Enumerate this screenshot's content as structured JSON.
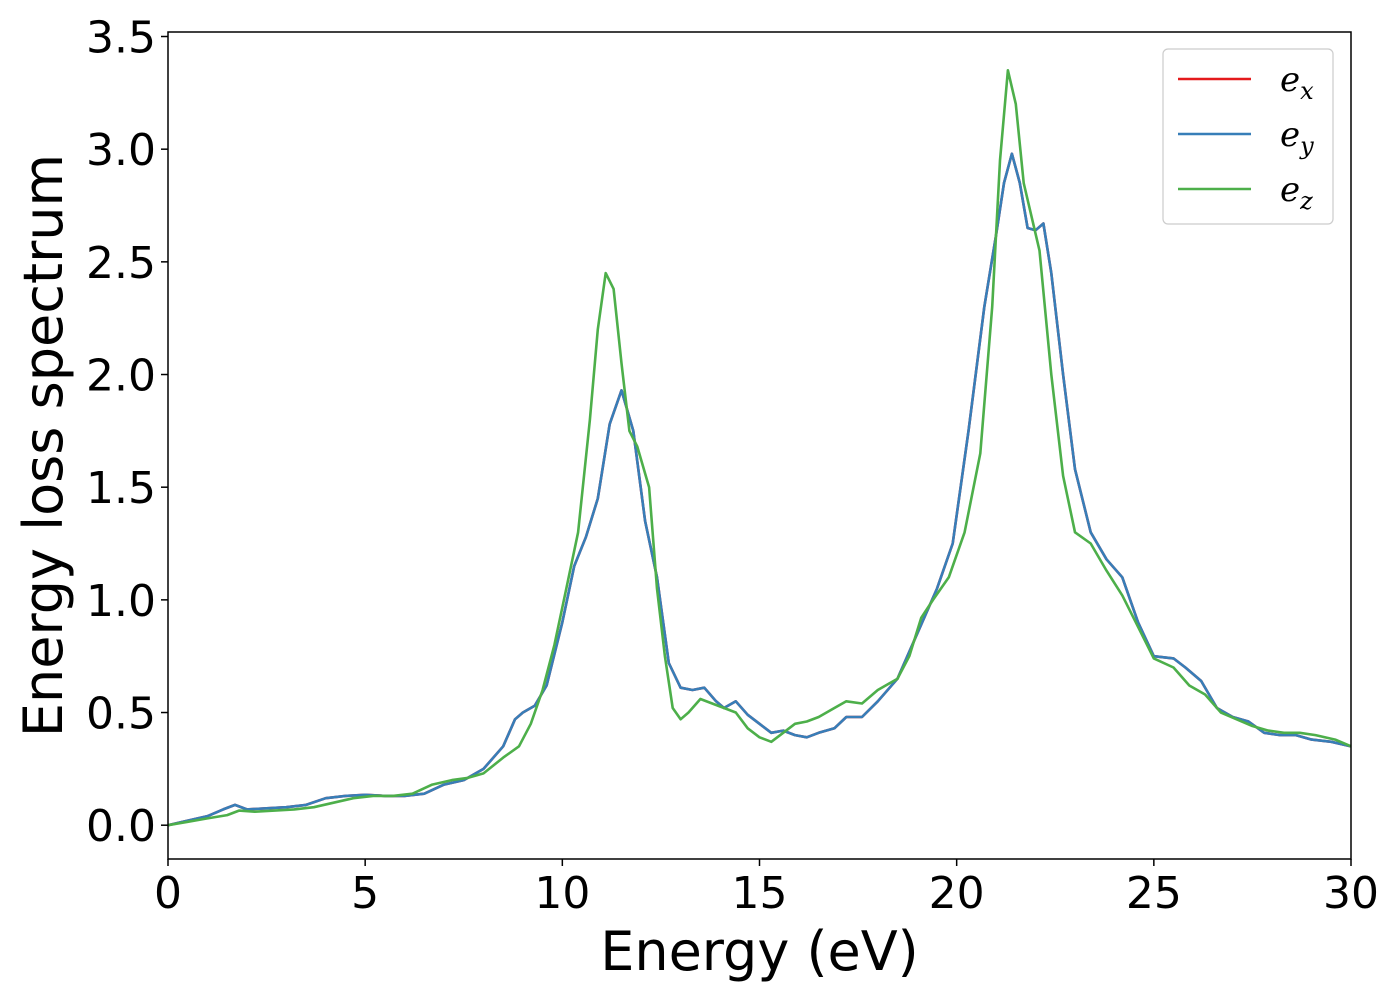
{
  "chart_data": {
    "type": "line",
    "title": "",
    "xlabel": "Energy (eV)",
    "ylabel": "Energy loss spectrum",
    "xlim": [
      0,
      30
    ],
    "ylim": [
      -0.15,
      3.52
    ],
    "xticks": [
      0,
      5,
      10,
      15,
      20,
      25,
      30
    ],
    "xtick_labels": [
      "0",
      "5",
      "10",
      "15",
      "20",
      "25",
      "30"
    ],
    "yticks": [
      0.0,
      0.5,
      1.0,
      1.5,
      2.0,
      2.5,
      3.0,
      3.5
    ],
    "ytick_labels": [
      "0.0",
      "0.5",
      "1.0",
      "1.5",
      "2.0",
      "2.5",
      "3.0",
      "3.5"
    ],
    "grid": false,
    "legend": {
      "position": "top-right",
      "entries": [
        {
          "base": "e",
          "sub": "x",
          "color": "#e41a1c"
        },
        {
          "base": "e",
          "sub": "y",
          "color": "#377eb8"
        },
        {
          "base": "e",
          "sub": "z",
          "color": "#4daf4a"
        }
      ]
    },
    "series": [
      {
        "name": "ex",
        "color": "#e41a1c",
        "points": [
          [
            0,
            0
          ],
          [
            0.5,
            0.02
          ],
          [
            1,
            0.04
          ],
          [
            1.4,
            0.07
          ],
          [
            1.7,
            0.09
          ],
          [
            2.0,
            0.07
          ],
          [
            2.5,
            0.075
          ],
          [
            3.0,
            0.08
          ],
          [
            3.5,
            0.09
          ],
          [
            4.0,
            0.12
          ],
          [
            4.5,
            0.13
          ],
          [
            5.0,
            0.135
          ],
          [
            5.5,
            0.13
          ],
          [
            6.0,
            0.13
          ],
          [
            6.5,
            0.14
          ],
          [
            7.0,
            0.18
          ],
          [
            7.5,
            0.2
          ],
          [
            8.0,
            0.25
          ],
          [
            8.5,
            0.35
          ],
          [
            8.8,
            0.47
          ],
          [
            9.0,
            0.5
          ],
          [
            9.3,
            0.53
          ],
          [
            9.6,
            0.62
          ],
          [
            10.0,
            0.9
          ],
          [
            10.3,
            1.15
          ],
          [
            10.6,
            1.28
          ],
          [
            10.9,
            1.45
          ],
          [
            11.2,
            1.78
          ],
          [
            11.5,
            1.93
          ],
          [
            11.8,
            1.75
          ],
          [
            12.1,
            1.35
          ],
          [
            12.4,
            1.1
          ],
          [
            12.7,
            0.72
          ],
          [
            13.0,
            0.61
          ],
          [
            13.3,
            0.6
          ],
          [
            13.6,
            0.61
          ],
          [
            13.9,
            0.55
          ],
          [
            14.1,
            0.52
          ],
          [
            14.4,
            0.55
          ],
          [
            14.7,
            0.49
          ],
          [
            15.0,
            0.45
          ],
          [
            15.3,
            0.41
          ],
          [
            15.6,
            0.42
          ],
          [
            15.9,
            0.4
          ],
          [
            16.2,
            0.39
          ],
          [
            16.5,
            0.41
          ],
          [
            16.9,
            0.43
          ],
          [
            17.2,
            0.48
          ],
          [
            17.6,
            0.48
          ],
          [
            18.0,
            0.55
          ],
          [
            18.5,
            0.65
          ],
          [
            19.0,
            0.85
          ],
          [
            19.5,
            1.05
          ],
          [
            19.9,
            1.25
          ],
          [
            20.3,
            1.75
          ],
          [
            20.7,
            2.3
          ],
          [
            21.0,
            2.62
          ],
          [
            21.2,
            2.85
          ],
          [
            21.4,
            2.98
          ],
          [
            21.6,
            2.85
          ],
          [
            21.8,
            2.65
          ],
          [
            22.0,
            2.64
          ],
          [
            22.2,
            2.67
          ],
          [
            22.4,
            2.45
          ],
          [
            22.7,
            2.0
          ],
          [
            23.0,
            1.58
          ],
          [
            23.4,
            1.3
          ],
          [
            23.8,
            1.18
          ],
          [
            24.2,
            1.1
          ],
          [
            24.6,
            0.9
          ],
          [
            25.0,
            0.75
          ],
          [
            25.5,
            0.74
          ],
          [
            25.8,
            0.7
          ],
          [
            26.2,
            0.64
          ],
          [
            26.6,
            0.52
          ],
          [
            27.0,
            0.48
          ],
          [
            27.4,
            0.46
          ],
          [
            27.8,
            0.41
          ],
          [
            28.2,
            0.4
          ],
          [
            28.6,
            0.4
          ],
          [
            29.0,
            0.38
          ],
          [
            29.5,
            0.37
          ],
          [
            30.0,
            0.35
          ]
        ]
      },
      {
        "name": "ey",
        "color": "#377eb8",
        "points": [
          [
            0,
            0
          ],
          [
            0.5,
            0.02
          ],
          [
            1,
            0.04
          ],
          [
            1.4,
            0.07
          ],
          [
            1.7,
            0.09
          ],
          [
            2.0,
            0.07
          ],
          [
            2.5,
            0.075
          ],
          [
            3.0,
            0.08
          ],
          [
            3.5,
            0.09
          ],
          [
            4.0,
            0.12
          ],
          [
            4.5,
            0.13
          ],
          [
            5.0,
            0.135
          ],
          [
            5.5,
            0.13
          ],
          [
            6.0,
            0.13
          ],
          [
            6.5,
            0.14
          ],
          [
            7.0,
            0.18
          ],
          [
            7.5,
            0.2
          ],
          [
            8.0,
            0.25
          ],
          [
            8.5,
            0.35
          ],
          [
            8.8,
            0.47
          ],
          [
            9.0,
            0.5
          ],
          [
            9.3,
            0.53
          ],
          [
            9.6,
            0.62
          ],
          [
            10.0,
            0.9
          ],
          [
            10.3,
            1.15
          ],
          [
            10.6,
            1.28
          ],
          [
            10.9,
            1.45
          ],
          [
            11.2,
            1.78
          ],
          [
            11.5,
            1.93
          ],
          [
            11.8,
            1.75
          ],
          [
            12.1,
            1.35
          ],
          [
            12.4,
            1.1
          ],
          [
            12.7,
            0.72
          ],
          [
            13.0,
            0.61
          ],
          [
            13.3,
            0.6
          ],
          [
            13.6,
            0.61
          ],
          [
            13.9,
            0.55
          ],
          [
            14.1,
            0.52
          ],
          [
            14.4,
            0.55
          ],
          [
            14.7,
            0.49
          ],
          [
            15.0,
            0.45
          ],
          [
            15.3,
            0.41
          ],
          [
            15.6,
            0.42
          ],
          [
            15.9,
            0.4
          ],
          [
            16.2,
            0.39
          ],
          [
            16.5,
            0.41
          ],
          [
            16.9,
            0.43
          ],
          [
            17.2,
            0.48
          ],
          [
            17.6,
            0.48
          ],
          [
            18.0,
            0.55
          ],
          [
            18.5,
            0.65
          ],
          [
            19.0,
            0.85
          ],
          [
            19.5,
            1.05
          ],
          [
            19.9,
            1.25
          ],
          [
            20.3,
            1.75
          ],
          [
            20.7,
            2.3
          ],
          [
            21.0,
            2.62
          ],
          [
            21.2,
            2.85
          ],
          [
            21.4,
            2.98
          ],
          [
            21.6,
            2.85
          ],
          [
            21.8,
            2.65
          ],
          [
            22.0,
            2.64
          ],
          [
            22.2,
            2.67
          ],
          [
            22.4,
            2.45
          ],
          [
            22.7,
            2.0
          ],
          [
            23.0,
            1.58
          ],
          [
            23.4,
            1.3
          ],
          [
            23.8,
            1.18
          ],
          [
            24.2,
            1.1
          ],
          [
            24.6,
            0.9
          ],
          [
            25.0,
            0.75
          ],
          [
            25.5,
            0.74
          ],
          [
            25.8,
            0.7
          ],
          [
            26.2,
            0.64
          ],
          [
            26.6,
            0.52
          ],
          [
            27.0,
            0.48
          ],
          [
            27.4,
            0.46
          ],
          [
            27.8,
            0.41
          ],
          [
            28.2,
            0.4
          ],
          [
            28.6,
            0.4
          ],
          [
            29.0,
            0.38
          ],
          [
            29.5,
            0.37
          ],
          [
            30.0,
            0.35
          ]
        ]
      },
      {
        "name": "ez",
        "color": "#4daf4a",
        "points": [
          [
            0,
            0
          ],
          [
            0.5,
            0.015
          ],
          [
            1,
            0.03
          ],
          [
            1.5,
            0.045
          ],
          [
            1.8,
            0.065
          ],
          [
            2.2,
            0.06
          ],
          [
            2.7,
            0.065
          ],
          [
            3.2,
            0.07
          ],
          [
            3.7,
            0.08
          ],
          [
            4.2,
            0.1
          ],
          [
            4.7,
            0.12
          ],
          [
            5.2,
            0.13
          ],
          [
            5.7,
            0.13
          ],
          [
            6.2,
            0.14
          ],
          [
            6.7,
            0.18
          ],
          [
            7.2,
            0.2
          ],
          [
            7.6,
            0.21
          ],
          [
            8.0,
            0.23
          ],
          [
            8.5,
            0.3
          ],
          [
            8.9,
            0.35
          ],
          [
            9.2,
            0.45
          ],
          [
            9.5,
            0.6
          ],
          [
            9.8,
            0.8
          ],
          [
            10.1,
            1.05
          ],
          [
            10.4,
            1.3
          ],
          [
            10.7,
            1.8
          ],
          [
            10.9,
            2.2
          ],
          [
            11.1,
            2.45
          ],
          [
            11.3,
            2.38
          ],
          [
            11.5,
            2.05
          ],
          [
            11.7,
            1.75
          ],
          [
            11.9,
            1.68
          ],
          [
            12.2,
            1.5
          ],
          [
            12.4,
            1.05
          ],
          [
            12.6,
            0.75
          ],
          [
            12.8,
            0.52
          ],
          [
            13.0,
            0.47
          ],
          [
            13.2,
            0.5
          ],
          [
            13.5,
            0.56
          ],
          [
            13.8,
            0.54
          ],
          [
            14.1,
            0.52
          ],
          [
            14.4,
            0.5
          ],
          [
            14.7,
            0.43
          ],
          [
            15.0,
            0.39
          ],
          [
            15.3,
            0.37
          ],
          [
            15.6,
            0.41
          ],
          [
            15.9,
            0.45
          ],
          [
            16.2,
            0.46
          ],
          [
            16.5,
            0.48
          ],
          [
            16.9,
            0.52
          ],
          [
            17.2,
            0.55
          ],
          [
            17.6,
            0.54
          ],
          [
            18.0,
            0.6
          ],
          [
            18.5,
            0.65
          ],
          [
            18.8,
            0.75
          ],
          [
            19.1,
            0.92
          ],
          [
            19.4,
            1.0
          ],
          [
            19.8,
            1.1
          ],
          [
            20.2,
            1.3
          ],
          [
            20.6,
            1.65
          ],
          [
            20.9,
            2.3
          ],
          [
            21.1,
            2.95
          ],
          [
            21.3,
            3.35
          ],
          [
            21.5,
            3.2
          ],
          [
            21.7,
            2.85
          ],
          [
            21.9,
            2.7
          ],
          [
            22.1,
            2.55
          ],
          [
            22.4,
            2.0
          ],
          [
            22.7,
            1.55
          ],
          [
            23.0,
            1.3
          ],
          [
            23.4,
            1.25
          ],
          [
            23.8,
            1.13
          ],
          [
            24.2,
            1.02
          ],
          [
            24.6,
            0.88
          ],
          [
            25.0,
            0.74
          ],
          [
            25.5,
            0.7
          ],
          [
            25.9,
            0.62
          ],
          [
            26.3,
            0.58
          ],
          [
            26.7,
            0.5
          ],
          [
            27.1,
            0.47
          ],
          [
            27.5,
            0.44
          ],
          [
            27.9,
            0.42
          ],
          [
            28.3,
            0.41
          ],
          [
            28.7,
            0.41
          ],
          [
            29.1,
            0.4
          ],
          [
            29.6,
            0.38
          ],
          [
            30.0,
            0.35
          ]
        ]
      }
    ]
  }
}
